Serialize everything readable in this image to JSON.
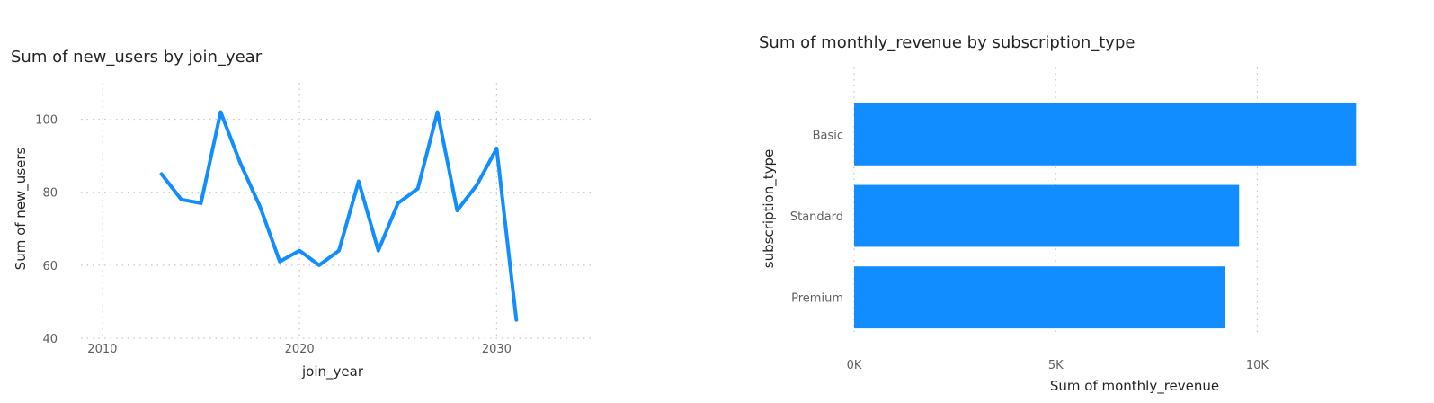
{
  "chart_data": [
    {
      "type": "line",
      "title": "Sum of new_users by join_year",
      "xlabel": "join_year",
      "ylabel": "Sum of new_users",
      "xlim": [
        2008,
        2035
      ],
      "ylim": [
        40,
        110
      ],
      "x_ticks": [
        2010,
        2020,
        2030
      ],
      "y_ticks": [
        40,
        60,
        80,
        100
      ],
      "grid": true,
      "color": "#118DFF",
      "x": [
        2013,
        2014,
        2015,
        2016,
        2017,
        2018,
        2019,
        2020,
        2021,
        2022,
        2023,
        2024,
        2025,
        2026,
        2027,
        2028,
        2029,
        2030,
        2031
      ],
      "y": [
        85,
        78,
        77,
        102,
        88,
        76,
        61,
        64,
        60,
        64,
        83,
        64,
        77,
        81,
        102,
        75,
        82,
        92,
        45
      ]
    },
    {
      "type": "bar",
      "orientation": "horizontal",
      "title": "Sum of monthly_revenue by subscription_type",
      "xlabel": "Sum of monthly_revenue",
      "ylabel": "subscription_type",
      "categories": [
        "Basic",
        "Standard",
        "Premium"
      ],
      "values": [
        12450,
        9550,
        9200
      ],
      "xlim": [
        0,
        12800
      ],
      "x_ticks": [
        0,
        5000,
        10000
      ],
      "x_tick_labels": [
        "0K",
        "5K",
        "10K"
      ],
      "grid": true,
      "color": "#118DFF"
    }
  ]
}
